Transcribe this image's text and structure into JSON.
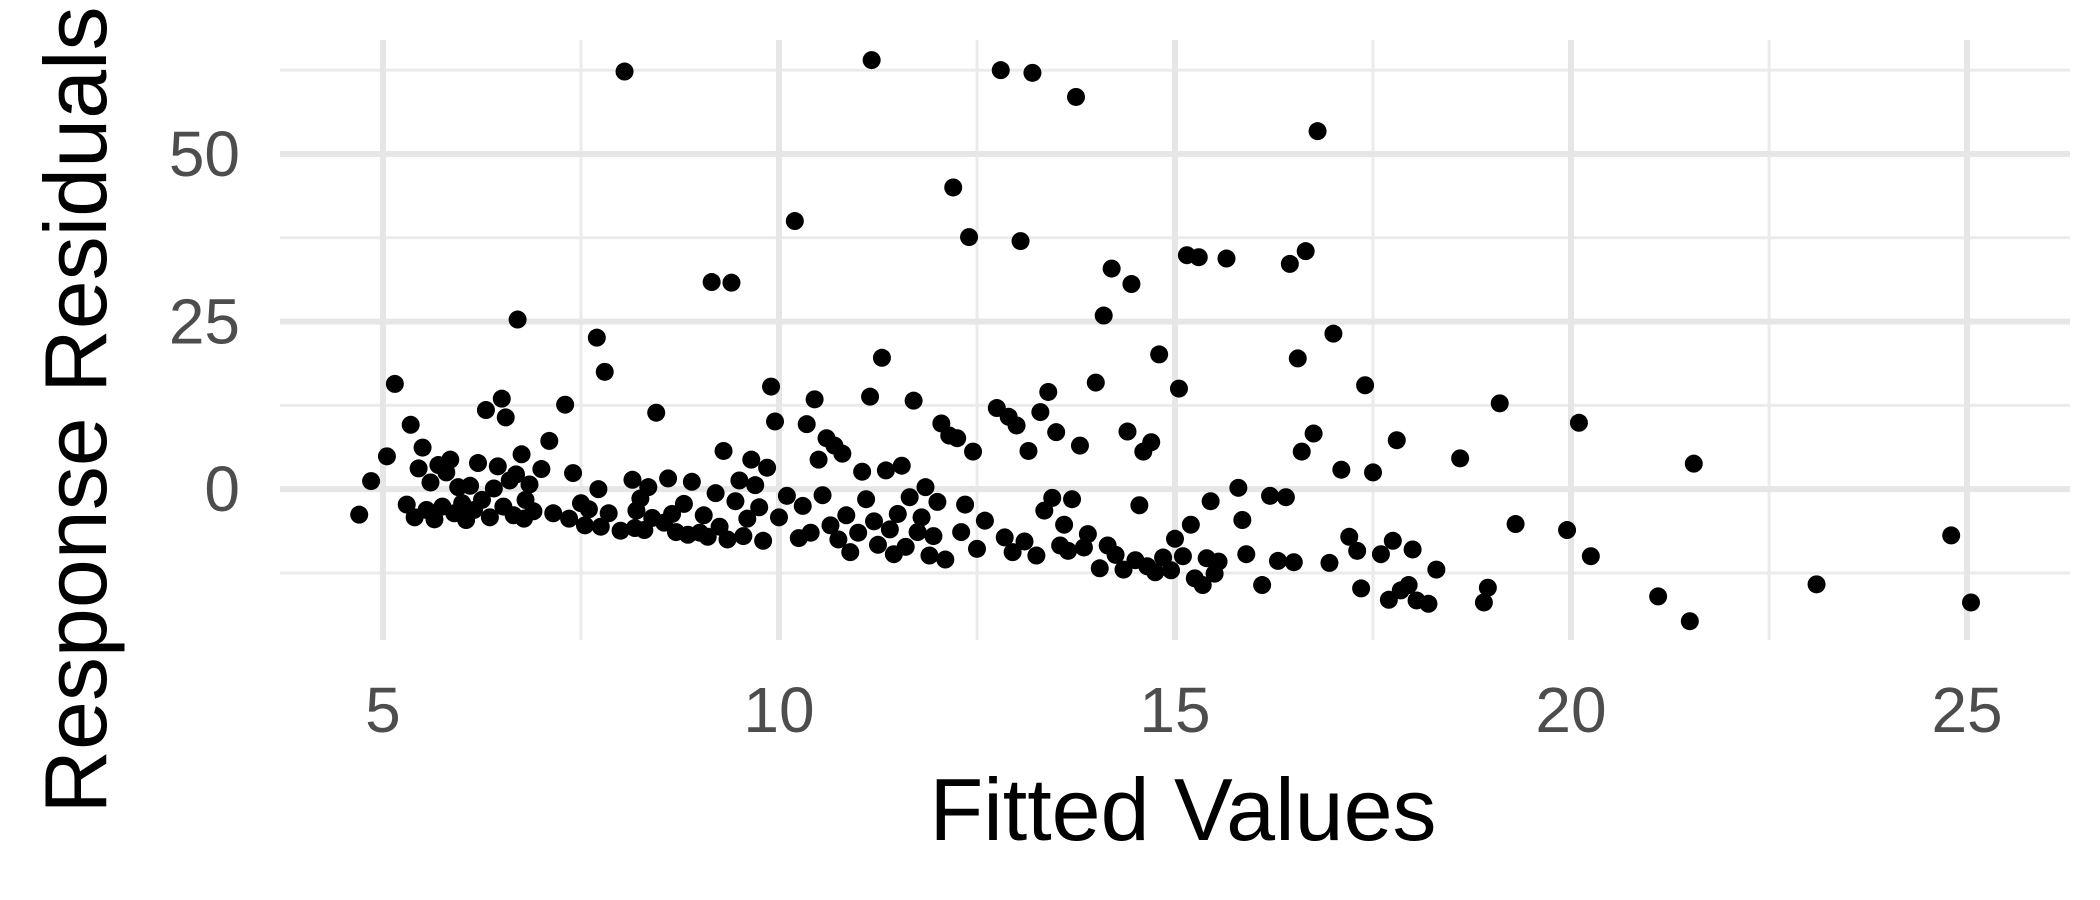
{
  "chart_data": {
    "type": "scatter",
    "xlabel": "Fitted Values",
    "ylabel": "Response Residuals",
    "xlim": [
      3.7,
      26.3
    ],
    "ylim": [
      -22.5,
      67
    ],
    "x_ticks": [
      5,
      10,
      15,
      20,
      25
    ],
    "x_tick_labels": [
      "5",
      "10",
      "15",
      "20",
      "25"
    ],
    "y_ticks": [
      0,
      25,
      50
    ],
    "y_tick_labels": [
      "0",
      "25",
      "50"
    ],
    "grid": true,
    "legend": "none",
    "series": [
      {
        "color": "#000000",
        "points": [
          [
            4.7,
            -3.8
          ],
          [
            4.85,
            1.2
          ],
          [
            5.05,
            4.9
          ],
          [
            5.15,
            15.7
          ],
          [
            5.3,
            -2.3
          ],
          [
            5.35,
            9.6
          ],
          [
            5.4,
            -4.2
          ],
          [
            5.45,
            3.1
          ],
          [
            5.5,
            6.2
          ],
          [
            5.55,
            -3.1
          ],
          [
            5.6,
            1.0
          ],
          [
            5.65,
            -4.5
          ],
          [
            5.7,
            3.6
          ],
          [
            5.75,
            -2.6
          ],
          [
            5.8,
            2.5
          ],
          [
            5.85,
            4.4
          ],
          [
            5.9,
            -3.6
          ],
          [
            5.95,
            0.3
          ],
          [
            6.0,
            -2.1
          ],
          [
            6.05,
            -4.6
          ],
          [
            6.1,
            0.5
          ],
          [
            6.15,
            -3.1
          ],
          [
            6.2,
            3.9
          ],
          [
            6.25,
            -1.6
          ],
          [
            6.3,
            11.8
          ],
          [
            6.35,
            -4.2
          ],
          [
            6.4,
            0.1
          ],
          [
            6.45,
            3.4
          ],
          [
            6.5,
            13.5
          ],
          [
            6.52,
            -2.6
          ],
          [
            6.55,
            10.7
          ],
          [
            6.6,
            1.3
          ],
          [
            6.65,
            -3.9
          ],
          [
            6.68,
            2.2
          ],
          [
            6.7,
            25.3
          ],
          [
            6.75,
            5.2
          ],
          [
            6.78,
            -4.4
          ],
          [
            6.8,
            -1.6
          ],
          [
            6.85,
            0.7
          ],
          [
            6.9,
            -3.3
          ],
          [
            7.0,
            3.0
          ],
          [
            7.1,
            7.2
          ],
          [
            7.15,
            -3.6
          ],
          [
            7.3,
            12.6
          ],
          [
            7.35,
            -4.4
          ],
          [
            7.4,
            2.4
          ],
          [
            7.5,
            -2.1
          ],
          [
            7.55,
            -5.4
          ],
          [
            7.6,
            -3.0
          ],
          [
            7.7,
            22.6
          ],
          [
            7.72,
            0.0
          ],
          [
            7.75,
            -5.6
          ],
          [
            7.8,
            17.5
          ],
          [
            7.85,
            -3.6
          ],
          [
            8.0,
            -6.2
          ],
          [
            8.05,
            62.3
          ],
          [
            8.15,
            1.4
          ],
          [
            8.18,
            -5.8
          ],
          [
            8.2,
            -3.2
          ],
          [
            8.25,
            -1.4
          ],
          [
            8.3,
            -6.1
          ],
          [
            8.35,
            0.3
          ],
          [
            8.4,
            -4.3
          ],
          [
            8.45,
            11.4
          ],
          [
            8.55,
            -5.0
          ],
          [
            8.6,
            1.6
          ],
          [
            8.65,
            -3.7
          ],
          [
            8.7,
            -6.4
          ],
          [
            8.8,
            -2.2
          ],
          [
            8.85,
            -6.8
          ],
          [
            8.9,
            1.1
          ],
          [
            9.0,
            -6.5
          ],
          [
            9.05,
            -3.9
          ],
          [
            9.1,
            -7.1
          ],
          [
            9.15,
            30.9
          ],
          [
            9.2,
            -0.6
          ],
          [
            9.25,
            -5.6
          ],
          [
            9.3,
            5.7
          ],
          [
            9.35,
            -7.5
          ],
          [
            9.4,
            30.8
          ],
          [
            9.45,
            -1.8
          ],
          [
            9.5,
            1.3
          ],
          [
            9.55,
            -7.0
          ],
          [
            9.6,
            -4.4
          ],
          [
            9.65,
            4.4
          ],
          [
            9.7,
            0.6
          ],
          [
            9.75,
            -2.7
          ],
          [
            9.8,
            -7.7
          ],
          [
            9.85,
            3.2
          ],
          [
            9.9,
            15.3
          ],
          [
            9.95,
            10.1
          ],
          [
            10.0,
            -4.2
          ],
          [
            10.1,
            -1.0
          ],
          [
            10.2,
            40.0
          ],
          [
            10.25,
            -7.3
          ],
          [
            10.3,
            -2.5
          ],
          [
            10.35,
            9.7
          ],
          [
            10.4,
            -6.5
          ],
          [
            10.45,
            13.4
          ],
          [
            10.5,
            4.4
          ],
          [
            10.55,
            -0.9
          ],
          [
            10.6,
            7.6
          ],
          [
            10.65,
            -5.4
          ],
          [
            10.7,
            6.5
          ],
          [
            10.75,
            -7.5
          ],
          [
            10.8,
            5.3
          ],
          [
            10.85,
            -3.9
          ],
          [
            10.9,
            -9.4
          ],
          [
            11.0,
            -6.5
          ],
          [
            11.05,
            2.6
          ],
          [
            11.1,
            -1.5
          ],
          [
            11.15,
            13.8
          ],
          [
            11.17,
            64.0
          ],
          [
            11.2,
            -4.8
          ],
          [
            11.25,
            -8.3
          ],
          [
            11.3,
            19.6
          ],
          [
            11.35,
            2.8
          ],
          [
            11.4,
            -6.0
          ],
          [
            11.45,
            -9.7
          ],
          [
            11.5,
            -3.7
          ],
          [
            11.55,
            3.5
          ],
          [
            11.6,
            -8.6
          ],
          [
            11.65,
            -1.2
          ],
          [
            11.7,
            13.2
          ],
          [
            11.75,
            -6.4
          ],
          [
            11.8,
            -4.2
          ],
          [
            11.85,
            0.3
          ],
          [
            11.9,
            -9.9
          ],
          [
            11.95,
            -7.0
          ],
          [
            12.0,
            -1.9
          ],
          [
            12.05,
            9.8
          ],
          [
            12.1,
            -10.5
          ],
          [
            12.15,
            8.0
          ],
          [
            12.2,
            45.0
          ],
          [
            12.25,
            7.6
          ],
          [
            12.3,
            -6.4
          ],
          [
            12.35,
            -2.3
          ],
          [
            12.4,
            37.6
          ],
          [
            12.45,
            5.6
          ],
          [
            12.5,
            -8.9
          ],
          [
            12.6,
            -4.7
          ],
          [
            12.75,
            12.1
          ],
          [
            12.8,
            62.5
          ],
          [
            12.85,
            -7.2
          ],
          [
            12.9,
            10.8
          ],
          [
            12.95,
            -9.4
          ],
          [
            13.0,
            9.5
          ],
          [
            13.05,
            37.0
          ],
          [
            13.1,
            -7.8
          ],
          [
            13.15,
            5.7
          ],
          [
            13.2,
            62.1
          ],
          [
            13.25,
            -9.9
          ],
          [
            13.3,
            11.5
          ],
          [
            13.35,
            -3.2
          ],
          [
            13.4,
            14.5
          ],
          [
            13.45,
            -1.3
          ],
          [
            13.5,
            8.5
          ],
          [
            13.55,
            -8.4
          ],
          [
            13.6,
            -5.3
          ],
          [
            13.65,
            -9.2
          ],
          [
            13.7,
            -1.5
          ],
          [
            13.75,
            58.5
          ],
          [
            13.8,
            6.5
          ],
          [
            13.85,
            -8.7
          ],
          [
            13.9,
            -6.7
          ],
          [
            14.0,
            15.9
          ],
          [
            14.05,
            -11.8
          ],
          [
            14.1,
            25.9
          ],
          [
            14.15,
            -8.4
          ],
          [
            14.2,
            32.9
          ],
          [
            14.25,
            -9.8
          ],
          [
            14.35,
            -12.0
          ],
          [
            14.4,
            8.6
          ],
          [
            14.45,
            30.6
          ],
          [
            14.5,
            -10.6
          ],
          [
            14.55,
            -2.4
          ],
          [
            14.6,
            5.6
          ],
          [
            14.65,
            -11.5
          ],
          [
            14.7,
            7.0
          ],
          [
            14.75,
            -12.4
          ],
          [
            14.8,
            20.1
          ],
          [
            14.85,
            -10.2
          ],
          [
            14.95,
            -12.1
          ],
          [
            15.0,
            -7.4
          ],
          [
            15.05,
            15.0
          ],
          [
            15.1,
            -10.0
          ],
          [
            15.15,
            34.9
          ],
          [
            15.2,
            -5.3
          ],
          [
            15.25,
            -13.3
          ],
          [
            15.3,
            34.6
          ],
          [
            15.35,
            -14.3
          ],
          [
            15.4,
            -10.3
          ],
          [
            15.45,
            -1.8
          ],
          [
            15.5,
            -12.6
          ],
          [
            15.55,
            -10.8
          ],
          [
            15.65,
            34.4
          ],
          [
            15.8,
            0.2
          ],
          [
            15.85,
            -4.6
          ],
          [
            15.9,
            -9.7
          ],
          [
            16.1,
            -14.3
          ],
          [
            16.2,
            -1.0
          ],
          [
            16.3,
            -10.7
          ],
          [
            16.4,
            -1.2
          ],
          [
            16.45,
            33.6
          ],
          [
            16.5,
            -10.9
          ],
          [
            16.55,
            19.5
          ],
          [
            16.6,
            5.6
          ],
          [
            16.65,
            35.5
          ],
          [
            16.75,
            8.3
          ],
          [
            16.8,
            53.4
          ],
          [
            16.95,
            -11.0
          ],
          [
            17.0,
            23.2
          ],
          [
            17.1,
            2.9
          ],
          [
            17.2,
            -7.1
          ],
          [
            17.3,
            -9.2
          ],
          [
            17.35,
            -14.8
          ],
          [
            17.4,
            15.5
          ],
          [
            17.5,
            2.5
          ],
          [
            17.6,
            -9.7
          ],
          [
            17.7,
            -16.5
          ],
          [
            17.75,
            -7.7
          ],
          [
            17.8,
            7.3
          ],
          [
            17.85,
            -15.1
          ],
          [
            17.95,
            -14.3
          ],
          [
            18.0,
            -9.0
          ],
          [
            18.05,
            -16.6
          ],
          [
            18.2,
            -17.1
          ],
          [
            18.3,
            -12.0
          ],
          [
            18.6,
            4.6
          ],
          [
            18.9,
            -16.9
          ],
          [
            18.95,
            -14.7
          ],
          [
            19.1,
            12.8
          ],
          [
            19.3,
            -5.2
          ],
          [
            19.95,
            -6.1
          ],
          [
            20.1,
            9.9
          ],
          [
            20.25,
            -10.0
          ],
          [
            21.1,
            -16.0
          ],
          [
            21.5,
            -19.7
          ],
          [
            21.55,
            3.8
          ],
          [
            23.1,
            -14.2
          ],
          [
            24.8,
            -6.9
          ],
          [
            25.05,
            -16.9
          ]
        ]
      }
    ]
  }
}
